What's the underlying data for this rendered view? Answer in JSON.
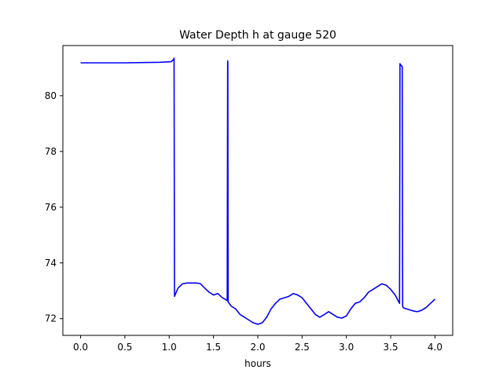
{
  "chart_data": {
    "type": "line",
    "title": "Water Depth h at gauge 520",
    "xlabel": "hours",
    "ylabel": "",
    "xlim": [
      -0.2,
      4.2
    ],
    "ylim": [
      71.4,
      81.8
    ],
    "xticks": [
      0.0,
      0.5,
      1.0,
      1.5,
      2.0,
      2.5,
      3.0,
      3.5,
      4.0
    ],
    "xtick_labels": [
      "0.0",
      "0.5",
      "1.0",
      "1.5",
      "2.0",
      "2.5",
      "3.0",
      "3.5",
      "4.0"
    ],
    "yticks": [
      72,
      74,
      76,
      78,
      80
    ],
    "ytick_labels": [
      "72",
      "74",
      "76",
      "78",
      "80"
    ],
    "grid": false,
    "legend": "none",
    "series": [
      {
        "color": "#0000ff",
        "x": [
          0.0,
          0.5,
          0.9,
          1.02,
          1.05,
          1.055,
          1.06,
          1.1,
          1.15,
          1.2,
          1.3,
          1.35,
          1.4,
          1.45,
          1.5,
          1.55,
          1.6,
          1.63,
          1.655,
          1.66,
          1.662,
          1.665,
          1.7,
          1.75,
          1.8,
          1.85,
          1.9,
          1.95,
          2.0,
          2.05,
          2.1,
          2.15,
          2.2,
          2.25,
          2.3,
          2.35,
          2.4,
          2.45,
          2.5,
          2.55,
          2.6,
          2.65,
          2.7,
          2.75,
          2.8,
          2.85,
          2.9,
          2.95,
          3.0,
          3.05,
          3.1,
          3.15,
          3.2,
          3.25,
          3.3,
          3.35,
          3.4,
          3.45,
          3.5,
          3.55,
          3.6,
          3.605,
          3.61,
          3.62,
          3.63,
          3.635,
          3.64,
          3.65,
          3.7,
          3.75,
          3.8,
          3.85,
          3.9,
          3.95,
          4.0
        ],
        "y": [
          81.18,
          81.18,
          81.2,
          81.22,
          81.3,
          81.35,
          72.8,
          73.1,
          73.25,
          73.28,
          73.28,
          73.26,
          73.1,
          72.95,
          72.85,
          72.9,
          72.75,
          72.7,
          72.65,
          81.25,
          81.2,
          72.6,
          72.45,
          72.35,
          72.15,
          72.05,
          71.95,
          71.85,
          71.8,
          71.85,
          72.05,
          72.35,
          72.55,
          72.7,
          72.75,
          72.8,
          72.9,
          72.85,
          72.75,
          72.55,
          72.35,
          72.15,
          72.05,
          72.15,
          72.25,
          72.15,
          72.05,
          72.02,
          72.1,
          72.35,
          72.55,
          72.6,
          72.75,
          72.95,
          73.05,
          73.15,
          73.25,
          73.2,
          73.05,
          72.85,
          72.55,
          81.15,
          81.12,
          81.08,
          81.05,
          72.45,
          72.4,
          72.38,
          72.33,
          72.28,
          72.25,
          72.3,
          72.4,
          72.55,
          72.7
        ]
      }
    ]
  }
}
